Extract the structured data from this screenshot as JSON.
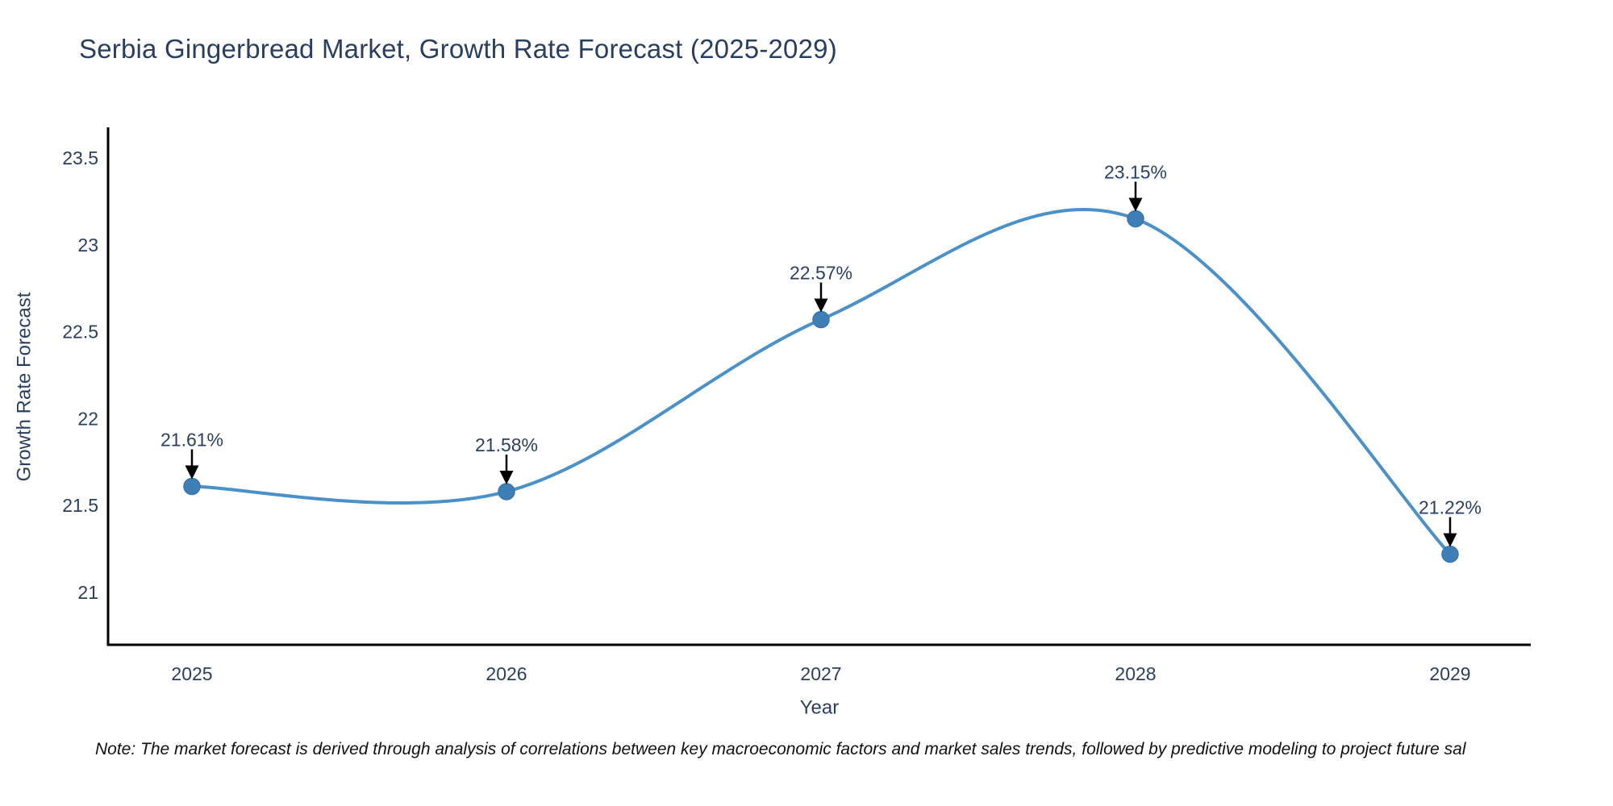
{
  "title": "Serbia Gingerbread Market, Growth Rate Forecast (2025-2029)",
  "note": "Note: The market forecast is derived through analysis of correlations between key macroeconomic factors and market sales trends, followed by predictive modeling to project future sal",
  "chart_data": {
    "type": "line",
    "line_shape": "spline",
    "title": "Serbia Gingerbread Market, Growth Rate Forecast (2025-2029)",
    "xlabel": "Year",
    "ylabel": "Growth Rate Forecast",
    "x": [
      2025,
      2026,
      2027,
      2028,
      2029
    ],
    "series": [
      {
        "name": "Growth Rate Forecast",
        "values": [
          21.61,
          21.58,
          22.57,
          23.15,
          21.22
        ]
      }
    ],
    "point_labels": [
      "21.61%",
      "21.58%",
      "22.57%",
      "23.15%",
      "21.22%"
    ],
    "xtick_labels": [
      "2025",
      "2026",
      "2027",
      "2028",
      "2029"
    ],
    "ytick_labels": [
      "21",
      "21.5",
      "22",
      "22.5",
      "23",
      "23.5"
    ],
    "yticks": [
      21,
      21.5,
      22,
      22.5,
      23,
      23.5
    ],
    "ylim": [
      20.7,
      23.67
    ],
    "grid": false,
    "legend_position": "none",
    "colors": {
      "line": "#4a90c9",
      "marker": "#3f7eb6",
      "axis": "#000000",
      "text": "#2a3f5f",
      "note_text": "#111111",
      "background": "#ffffff"
    }
  }
}
